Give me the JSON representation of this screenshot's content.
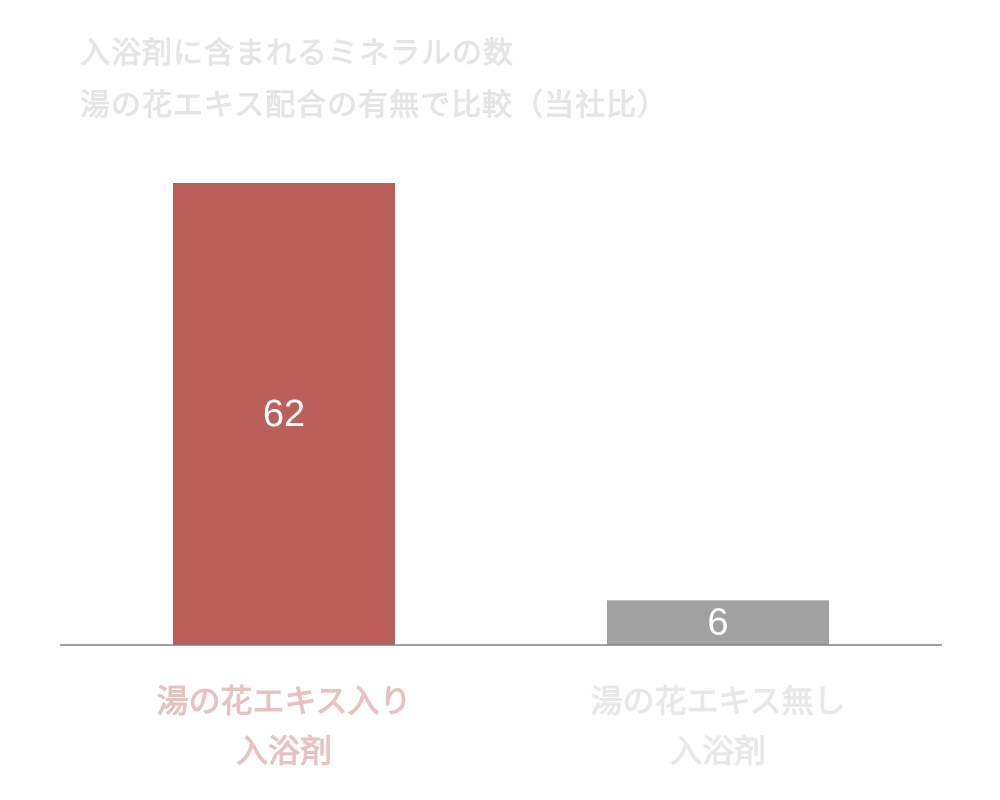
{
  "chart_data": {
    "type": "bar",
    "title_lines": [
      "入浴剤に含まれるミネラルの数",
      "湯の花エキス配合の有無で比較（当社比）"
    ],
    "categories": [
      {
        "lines": [
          "湯の花エキス入り",
          "入浴剤"
        ],
        "color": "#e6c2c1"
      },
      {
        "lines": [
          "湯の花エキス無し",
          "入浴剤"
        ],
        "color": "#e8e8e8"
      }
    ],
    "values": [
      62,
      6
    ],
    "bar_colors": [
      "#bb5f5a",
      "#a1a1a1"
    ],
    "value_label_color": "#ffffff",
    "axis_color": "#808080",
    "ylim": [
      0,
      62
    ],
    "grid": false,
    "legend": false
  }
}
